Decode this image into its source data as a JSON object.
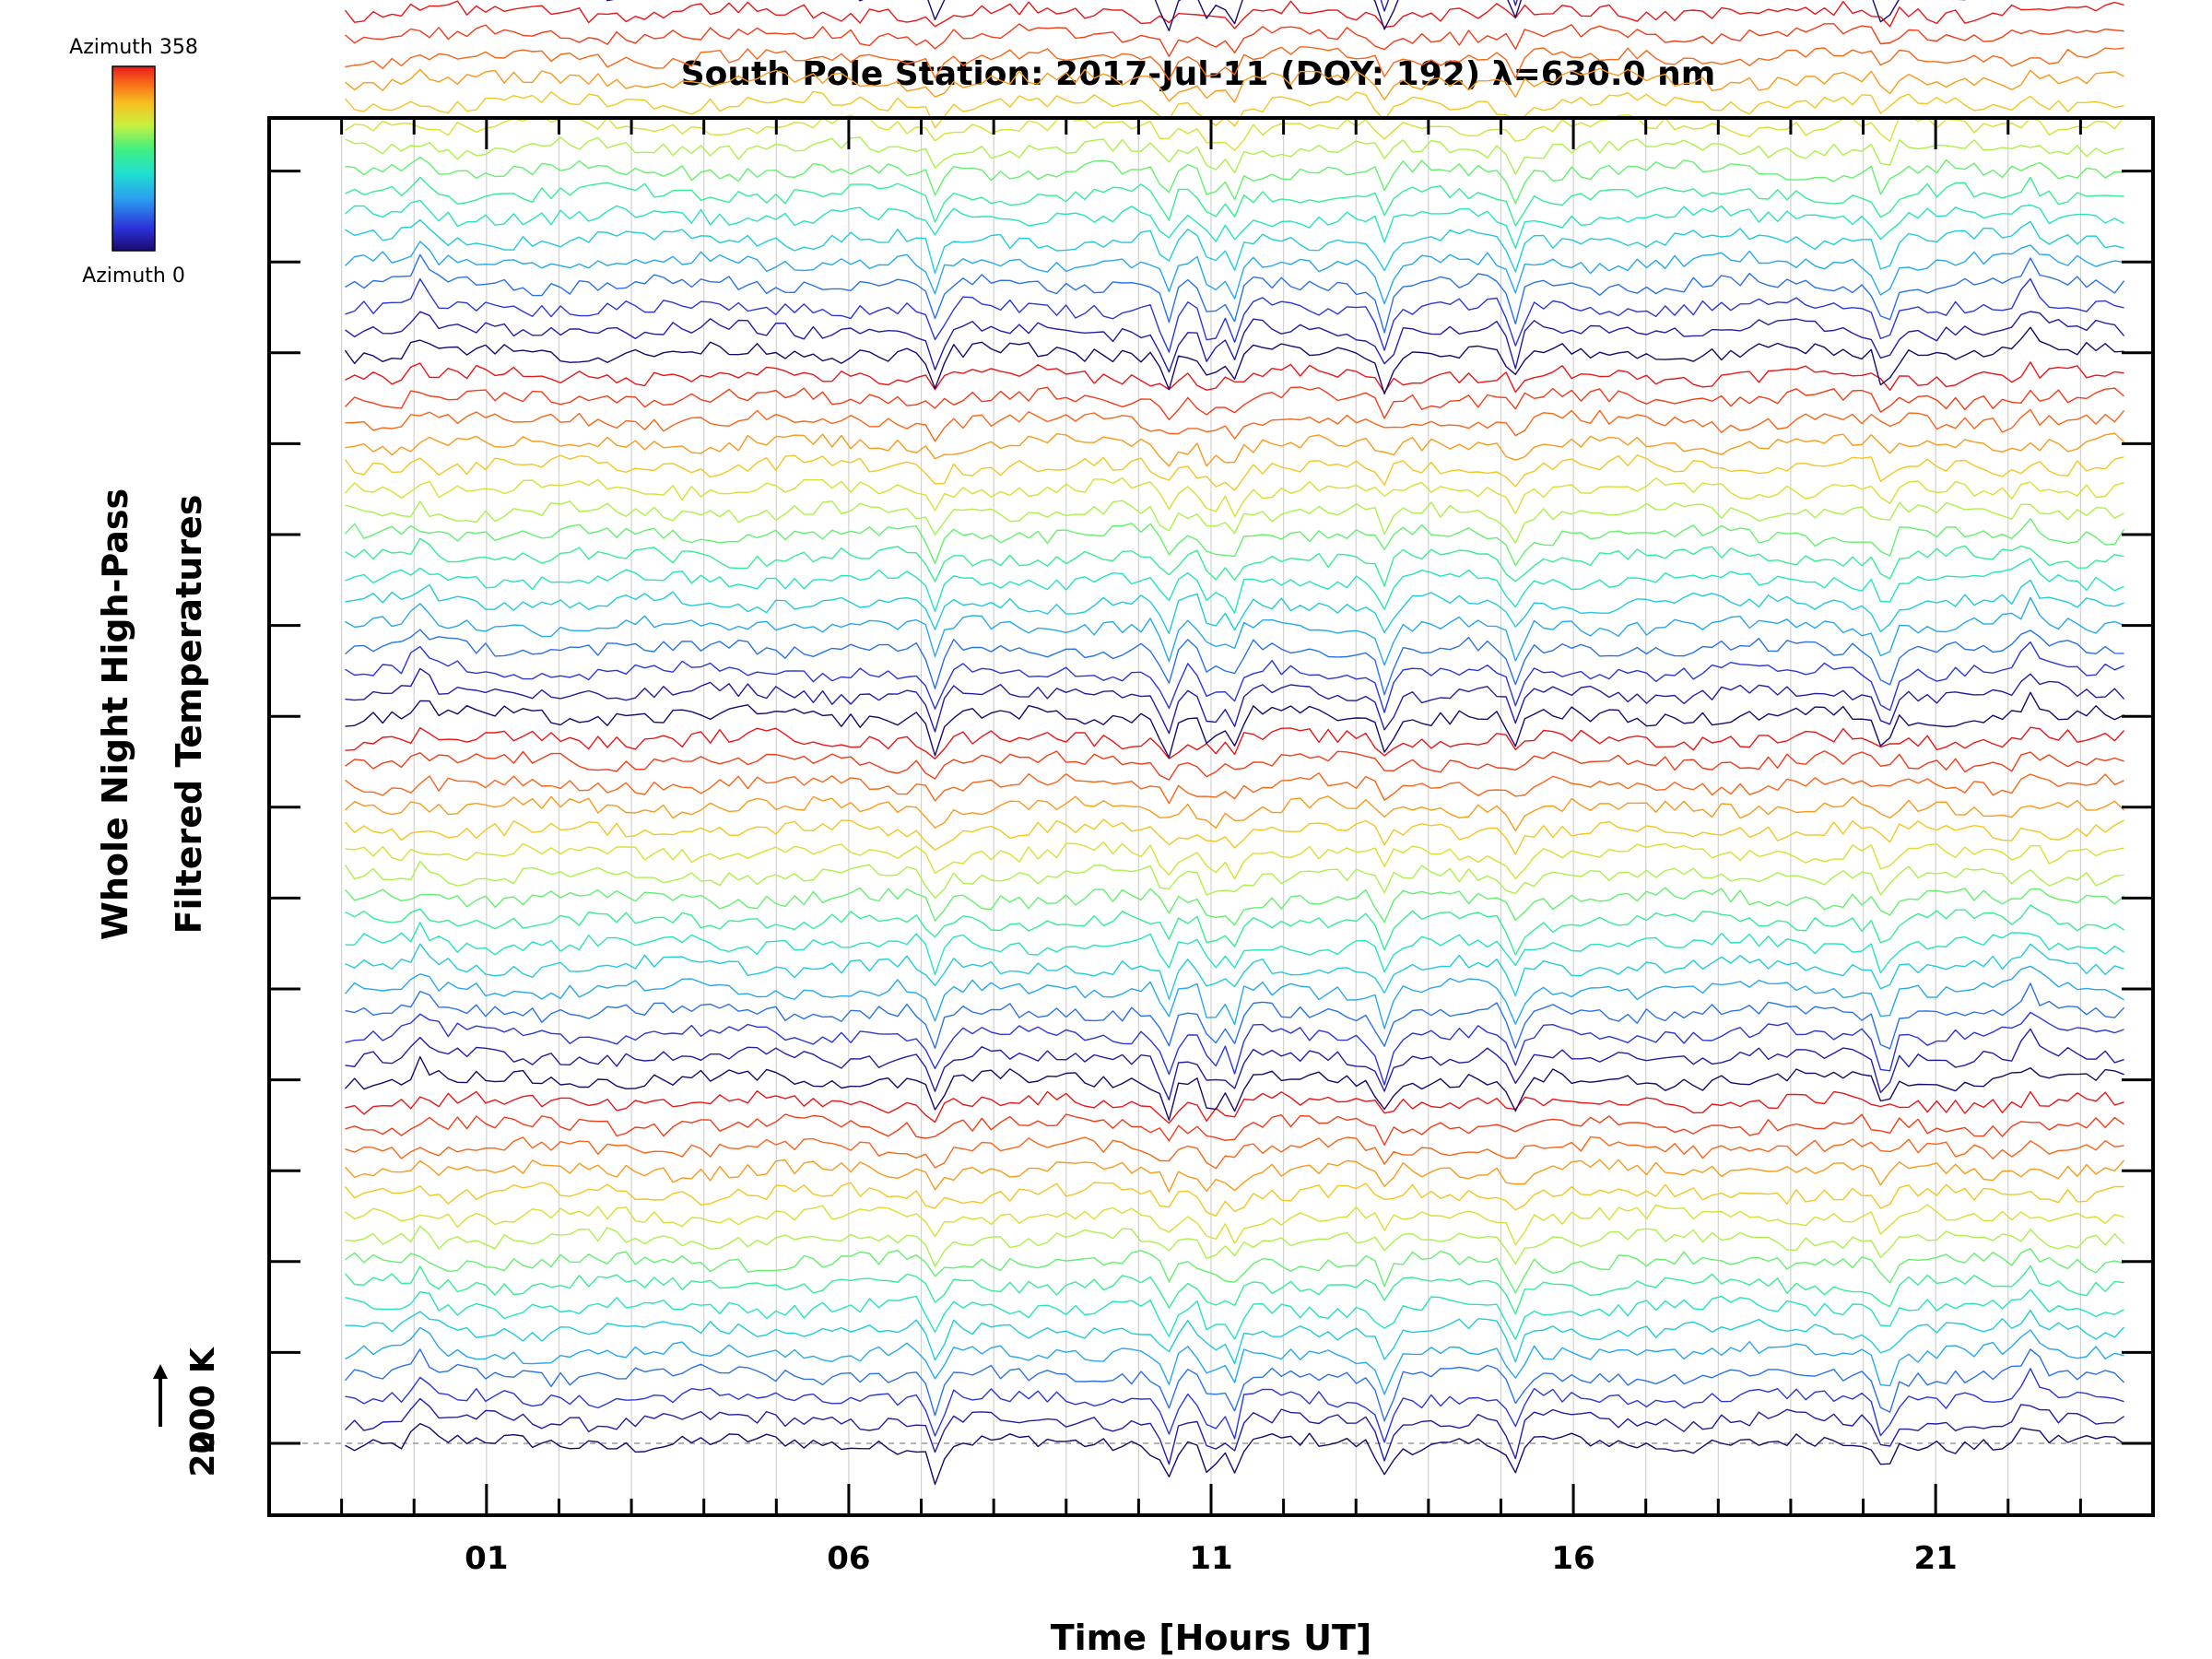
{
  "chart_data": {
    "type": "line",
    "title": "South Pole Station: 2017-Jul-11 (DOY: 192) λ=630.0 nm",
    "xlabel": "Time [Hours UT]",
    "ylabel_line1": "Whole Night High-Pass",
    "ylabel_line2": "Filtered Temperatures",
    "xlim": [
      -2,
      24
    ],
    "x_ticks": [
      1,
      6,
      11,
      16,
      21
    ],
    "x_tick_labels": [
      "01",
      "06",
      "11",
      "16",
      "21"
    ],
    "data_time_range_hours": [
      -0.95,
      23.6
    ],
    "offset_scale_label": "200 K",
    "baseline_label": "200",
    "colorbar": {
      "top_label": "Azimuth 358",
      "bottom_label": "Azimuth 0",
      "colormap": "rainbow (blue to red)",
      "colors": [
        "#1a0a6e",
        "#2c30d8",
        "#2a9ef0",
        "#20e0d0",
        "#40f080",
        "#c8f040",
        "#f8c020",
        "#f86018",
        "#e81818"
      ]
    },
    "series_count": 112,
    "series_groups": 7,
    "traces_per_group": 16,
    "series_stack_order": "bottom to top; each group runs from dark blue/black (azimuth 0) through cyan, green, yellow to red (azimuth 358)",
    "series_offset_kelvin": 25,
    "notable_dips_hours": [
      7.2,
      10.4,
      11.0,
      11.3,
      13.4,
      15.2,
      20.3
    ],
    "notable_peaks_hours": [
      0.1,
      22.3
    ]
  }
}
